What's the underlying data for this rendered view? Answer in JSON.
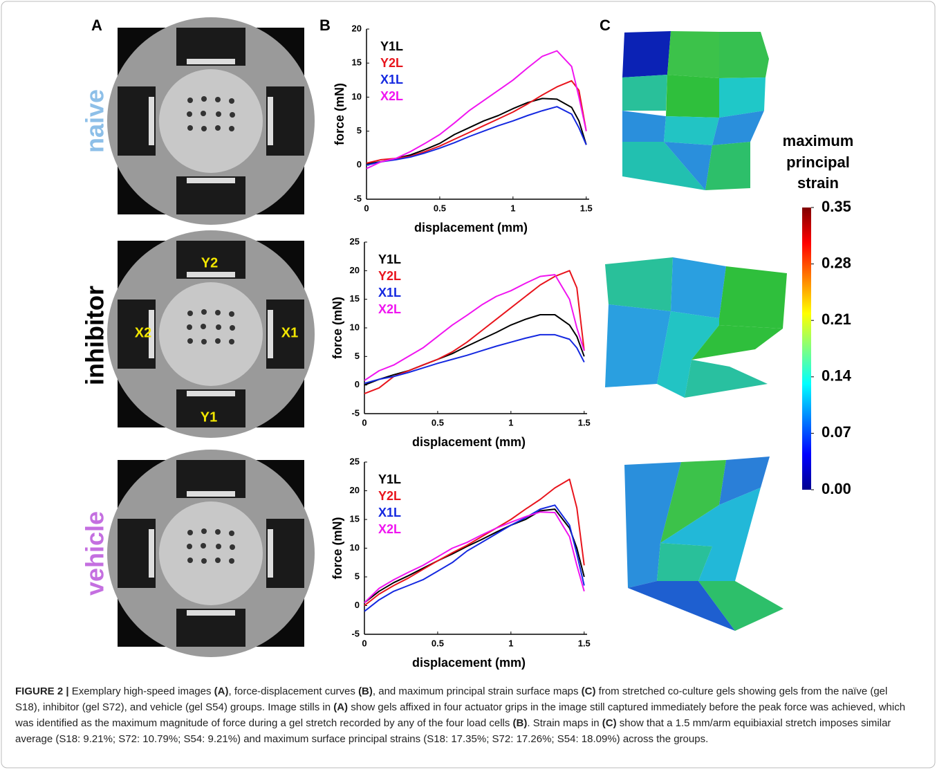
{
  "panel_labels": [
    "A",
    "B",
    "C"
  ],
  "group_labels": [
    "naive",
    "inhibitor",
    "vehicle"
  ],
  "photo_labels": [
    "Y2",
    "X2",
    "X1",
    "Y1"
  ],
  "chart_data": [
    {
      "type": "line",
      "xlabel": "displacement (mm)",
      "ylabel": "force (mN)",
      "x": [
        0,
        0.1,
        0.2,
        0.3,
        0.4,
        0.5,
        0.6,
        0.7,
        0.8,
        0.9,
        1,
        1.1,
        1.2,
        1.3,
        1.4,
        1.45,
        1.5
      ],
      "xlim": [
        0,
        1.52
      ],
      "xticks": [
        0,
        0.5,
        1,
        1.5
      ],
      "ylim": [
        -5,
        20
      ],
      "yticks": [
        -5,
        0,
        5,
        10,
        15,
        20
      ],
      "series": [
        {
          "name": "Y1L",
          "color": "#000000",
          "values": [
            0.2,
            0.5,
            1,
            1.5,
            2.3,
            3.2,
            4.5,
            5.5,
            6.5,
            7.3,
            8.3,
            9.2,
            9.8,
            9.7,
            8.5,
            6.5,
            3
          ]
        },
        {
          "name": "Y2L",
          "color": "#e8141c",
          "values": [
            0.3,
            0.8,
            1,
            1.3,
            2,
            2.8,
            3.8,
            4.8,
            5.8,
            6.8,
            7.8,
            9,
            10.3,
            11.5,
            12.4,
            11,
            5
          ]
        },
        {
          "name": "X1L",
          "color": "#1428e0",
          "values": [
            0,
            0.5,
            0.8,
            1.2,
            1.8,
            2.5,
            3.3,
            4.2,
            5,
            5.8,
            6.5,
            7.3,
            8,
            8.6,
            7.5,
            5.5,
            3
          ]
        },
        {
          "name": "X2L",
          "color": "#f014f0",
          "values": [
            -0.5,
            0.5,
            1,
            2,
            3.2,
            4.5,
            6.2,
            8,
            9.5,
            11,
            12.5,
            14.3,
            16,
            16.8,
            14.5,
            10,
            5
          ]
        }
      ]
    },
    {
      "type": "line",
      "xlabel": "displacement (mm)",
      "ylabel": "force (mN)",
      "x": [
        0,
        0.1,
        0.2,
        0.3,
        0.4,
        0.5,
        0.6,
        0.7,
        0.8,
        0.9,
        1,
        1.1,
        1.2,
        1.3,
        1.4,
        1.45,
        1.5
      ],
      "xlim": [
        0,
        1.52
      ],
      "xticks": [
        0,
        0.5,
        1,
        1.5
      ],
      "ylim": [
        -5,
        25
      ],
      "yticks": [
        -5,
        0,
        5,
        10,
        15,
        20,
        25
      ],
      "series": [
        {
          "name": "Y1L",
          "color": "#000000",
          "values": [
            0,
            1,
            1.8,
            2.5,
            3.5,
            4.5,
            5.5,
            6.8,
            8,
            9.2,
            10.5,
            11.5,
            12.3,
            12.3,
            10.5,
            8.5,
            5
          ]
        },
        {
          "name": "Y2L",
          "color": "#e8141c",
          "values": [
            -1.5,
            -0.5,
            1.5,
            2.5,
            3.5,
            4.5,
            5.8,
            7.5,
            9.5,
            11.5,
            13.5,
            15.5,
            17.5,
            19,
            20,
            17,
            6
          ]
        },
        {
          "name": "X1L",
          "color": "#1428e0",
          "values": [
            0.3,
            1,
            1.5,
            2.2,
            3,
            3.8,
            4.5,
            5.2,
            6,
            6.8,
            7.5,
            8.2,
            8.8,
            8.8,
            8,
            6.5,
            4
          ]
        },
        {
          "name": "X2L",
          "color": "#f014f0",
          "values": [
            0.8,
            2.5,
            3.5,
            5,
            6.5,
            8.5,
            10.5,
            12.2,
            14,
            15.5,
            16.5,
            17.8,
            19,
            19.3,
            15,
            10,
            6
          ]
        }
      ]
    },
    {
      "type": "line",
      "xlabel": "displacement (mm)",
      "ylabel": "force (mN)",
      "x": [
        0,
        0.1,
        0.2,
        0.3,
        0.4,
        0.5,
        0.6,
        0.7,
        0.8,
        0.9,
        1,
        1.1,
        1.2,
        1.3,
        1.4,
        1.45,
        1.5
      ],
      "xlim": [
        0,
        1.52
      ],
      "xticks": [
        0,
        0.5,
        1,
        1.5
      ],
      "ylim": [
        -5,
        25
      ],
      "yticks": [
        -5,
        0,
        5,
        10,
        15,
        20,
        25
      ],
      "series": [
        {
          "name": "Y1L",
          "color": "#000000",
          "values": [
            0.5,
            2.5,
            4,
            5.2,
            6.5,
            7.8,
            9,
            10.3,
            11.5,
            12.8,
            14,
            15,
            16.5,
            16.8,
            13.5,
            10,
            5
          ]
        },
        {
          "name": "Y2L",
          "color": "#e8141c",
          "values": [
            0,
            2,
            3.5,
            4.8,
            6.3,
            7.8,
            9.2,
            10.5,
            12,
            13.5,
            15,
            16.8,
            18.5,
            20.5,
            22,
            17,
            7
          ]
        },
        {
          "name": "X1L",
          "color": "#1428e0",
          "values": [
            -1,
            1,
            2.5,
            3.5,
            4.5,
            6,
            7.5,
            9.5,
            11,
            12.5,
            14,
            15.3,
            16.8,
            17.5,
            14,
            9,
            3.5
          ]
        },
        {
          "name": "X2L",
          "color": "#f014f0",
          "values": [
            0.5,
            3,
            4.5,
            5.8,
            7,
            8.5,
            10,
            11,
            12.3,
            13.5,
            14.5,
            15.5,
            16.3,
            16.2,
            12,
            7,
            2.5
          ]
        }
      ]
    }
  ],
  "colorbar": {
    "title": [
      "maximum",
      "principal",
      "strain"
    ],
    "lim": [
      0,
      0.35
    ],
    "ticks": [
      0.35,
      0.28,
      0.21,
      0.14,
      0.07,
      {
        "value": 0,
        "label": "0.00"
      }
    ]
  },
  "caption": [
    "FIGURE 2 |",
    " Exemplary high-speed images ",
    "(A)",
    ", force-displacement curves ",
    "(B)",
    ", and maximum principal strain surface maps ",
    "(C)",
    " from stretched co-culture gels showing gels from the naïve (gel S18), inhibitor (gel S72), and vehicle (gel S54) groups. Image stills in ",
    "(A)",
    " show gels affixed in four actuator grips in the image still captured immediately before the peak force was achieved, which was identified as the maximum magnitude of force during a gel stretch recorded by any of the four load cells ",
    "(B)",
    ". Strain maps in ",
    "(C)",
    " show that a 1.5 mm/arm equibiaxial stretch imposes similar average (S18: 9.21%; S72: 10.79%; S54: 9.21%) and maximum surface principal strains (S18: 17.35%; S72: 17.26%; S54: 18.09%) across the groups."
  ]
}
